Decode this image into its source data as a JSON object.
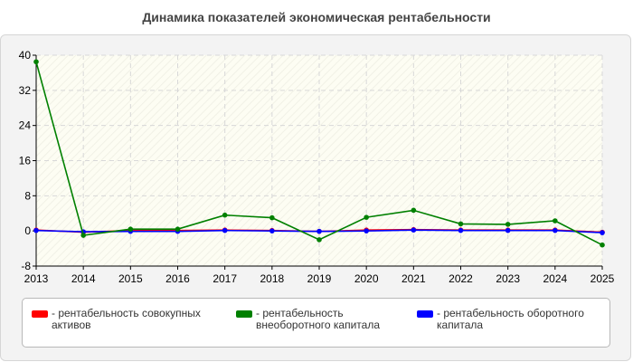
{
  "chart_data": {
    "type": "line",
    "title": "Динамика показателей экономическая рентабельности",
    "xlabel": "",
    "ylabel": "",
    "x": [
      "2013",
      "2014",
      "2015",
      "2016",
      "2017",
      "2018",
      "2019",
      "2020",
      "2021",
      "2022",
      "2023",
      "2024",
      "2025"
    ],
    "ylim": [
      -8,
      40
    ],
    "yticks": [
      "-8",
      "0",
      "8",
      "16",
      "24",
      "32",
      "40"
    ],
    "grid": true,
    "legend_position": "bottom",
    "series": [
      {
        "name": "- рентабельность совокупных активов",
        "color": "#ff0000",
        "values": [
          0.2,
          -0.3,
          0.1,
          0.1,
          0.2,
          0.1,
          -0.1,
          0.2,
          0.3,
          0.2,
          0.2,
          0.2,
          -0.3
        ]
      },
      {
        "name": "- рентабельность внеоборотного капитала",
        "color": "#008000",
        "values": [
          38.5,
          -1.0,
          0.4,
          0.4,
          3.6,
          3.0,
          -2.0,
          3.1,
          4.7,
          1.6,
          1.5,
          2.3,
          -3.2
        ]
      },
      {
        "name": "- рентабельность оборотного капитала",
        "color": "#0000ff",
        "values": [
          0.1,
          -0.2,
          -0.1,
          -0.1,
          0.1,
          0.0,
          -0.1,
          0.0,
          0.2,
          0.1,
          0.1,
          0.1,
          -0.4
        ]
      }
    ]
  }
}
